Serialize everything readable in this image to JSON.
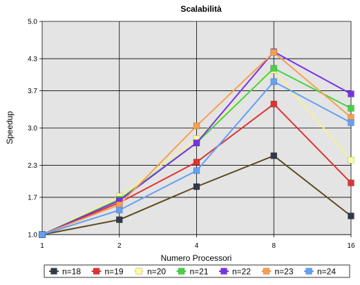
{
  "chart_data": {
    "type": "line",
    "title": "Scalabilità",
    "xlabel": "Numero Processori",
    "ylabel": "Speedup",
    "x": [
      "1",
      "2",
      "4",
      "8",
      "16"
    ],
    "yticks": [
      "1.0",
      "1.7",
      "2.3",
      "3.0",
      "3.7",
      "4.3",
      "5.0"
    ],
    "ylim": [
      1.0,
      5.0
    ],
    "grid": true,
    "legend_position": "bottom",
    "series": [
      {
        "name": "n=18",
        "color": "#5c4a1e",
        "marker_color": "#2f3a4a",
        "values": [
          1.0,
          1.28,
          1.9,
          2.48,
          1.35
        ]
      },
      {
        "name": "n=19",
        "color": "#e03232",
        "marker_color": "#e03232",
        "values": [
          1.0,
          1.6,
          2.36,
          3.45,
          1.97
        ]
      },
      {
        "name": "n=20",
        "color": "#f5f096",
        "marker_color": "#fafaa0",
        "values": [
          1.0,
          1.72,
          2.8,
          4.08,
          2.4
        ]
      },
      {
        "name": "n=21",
        "color": "#46d246",
        "marker_color": "#46d246",
        "values": [
          1.0,
          1.66,
          2.72,
          4.12,
          3.37
        ]
      },
      {
        "name": "n=22",
        "color": "#7832e6",
        "marker_color": "#7832e6",
        "values": [
          1.0,
          1.64,
          2.72,
          4.43,
          3.64
        ]
      },
      {
        "name": "n=23",
        "color": "#f5a050",
        "marker_color": "#f5a050",
        "values": [
          1.0,
          1.56,
          3.04,
          4.42,
          3.2
        ]
      },
      {
        "name": "n=24",
        "color": "#64a0f5",
        "marker_color": "#64a0f5",
        "values": [
          1.0,
          1.46,
          2.2,
          3.87,
          3.1
        ]
      }
    ]
  }
}
